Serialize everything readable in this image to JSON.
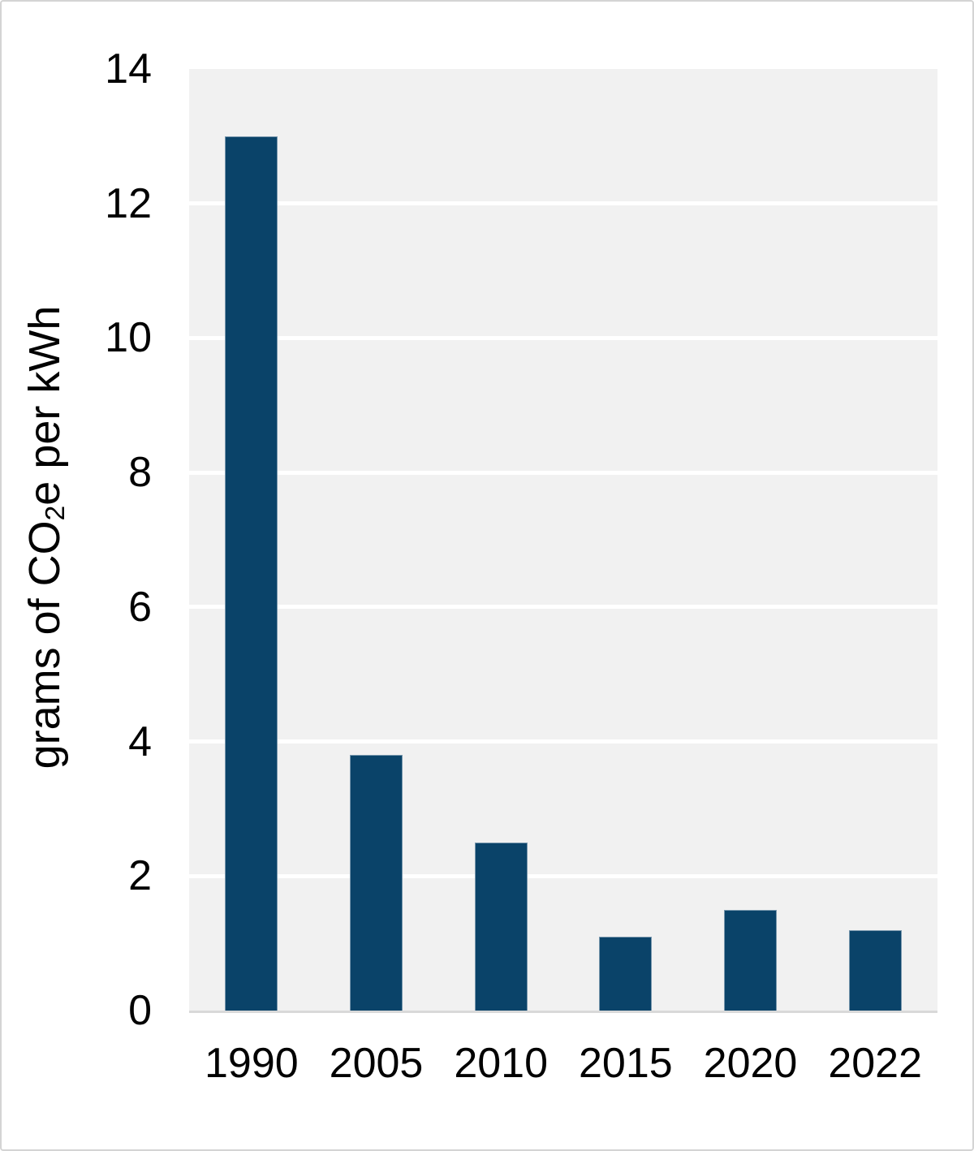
{
  "figure": {
    "background": "#ffffff",
    "border_color": "#d4d4d4"
  },
  "chart_data": {
    "type": "bar",
    "title": "",
    "ylabel_text": "grams of CO2e per kWh",
    "ylabel_parts": {
      "prefix": "grams of CO",
      "sub": "2",
      "suffix": "e per kWh"
    },
    "categories": [
      "1990",
      "2005",
      "2010",
      "2015",
      "2020",
      "2022"
    ],
    "values": [
      13,
      3.8,
      2.5,
      1.1,
      1.5,
      1.2
    ],
    "ylim": [
      0,
      14
    ],
    "yticks": [
      0,
      2,
      4,
      6,
      8,
      10,
      12,
      14
    ],
    "legend": "none",
    "grid": "horizontal-white-on-gray",
    "colors": {
      "bar": "#0a4369",
      "plot_background": "#f1f1f1",
      "gridline": "#ffffff",
      "axis_line": "#d9d9d9",
      "text": "#000000"
    }
  }
}
